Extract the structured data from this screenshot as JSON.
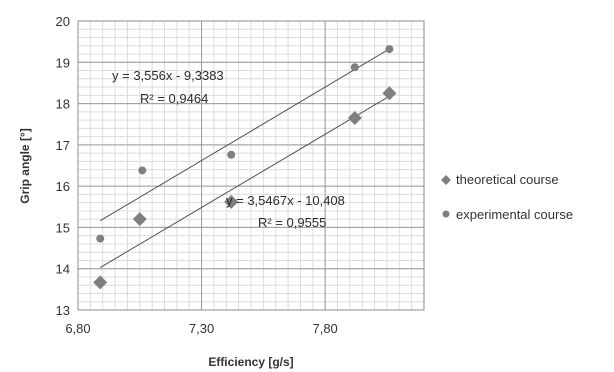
{
  "chart_data": {
    "type": "scatter",
    "title": "",
    "xlabel": "Efficiency [g/s]",
    "ylabel": "Grip angle [°]",
    "xlim": [
      6.8,
      8.2
    ],
    "ylim": [
      13,
      20
    ],
    "x_ticks": [
      "6,80",
      "7,30",
      "7,80"
    ],
    "y_ticks": [
      "13",
      "14",
      "15",
      "16",
      "17",
      "18",
      "19",
      "20"
    ],
    "grid": "major and minor",
    "legend_position": "right",
    "series": [
      {
        "name": "theoretical course",
        "marker": "diamond",
        "color": "#7f7f7f",
        "points": [
          {
            "x": 6.89,
            "y": 13.67
          },
          {
            "x": 7.05,
            "y": 15.2
          },
          {
            "x": 7.42,
            "y": 15.62
          },
          {
            "x": 7.92,
            "y": 17.65
          },
          {
            "x": 8.06,
            "y": 18.25
          }
        ],
        "trendline": {
          "slope": 3.5467,
          "intercept": -10.408,
          "x_range": [
            6.89,
            8.06
          ]
        }
      },
      {
        "name": "experimental course",
        "marker": "circle",
        "color": "#7f7f7f",
        "points": [
          {
            "x": 6.89,
            "y": 14.73
          },
          {
            "x": 7.06,
            "y": 16.38
          },
          {
            "x": 7.42,
            "y": 16.76
          },
          {
            "x": 7.92,
            "y": 18.88
          },
          {
            "x": 8.06,
            "y": 19.32
          }
        ],
        "trendline": {
          "slope": 3.556,
          "intercept": -9.3383,
          "x_range": [
            6.89,
            8.06
          ]
        }
      }
    ],
    "annotations": [
      {
        "series": 1,
        "equation": "y = 3,556x - 9,3383",
        "r2": "R² = 0,9464"
      },
      {
        "series": 0,
        "equation": "y = 3,5467x - 10,408",
        "r2": "R² = 0,9555"
      }
    ]
  }
}
